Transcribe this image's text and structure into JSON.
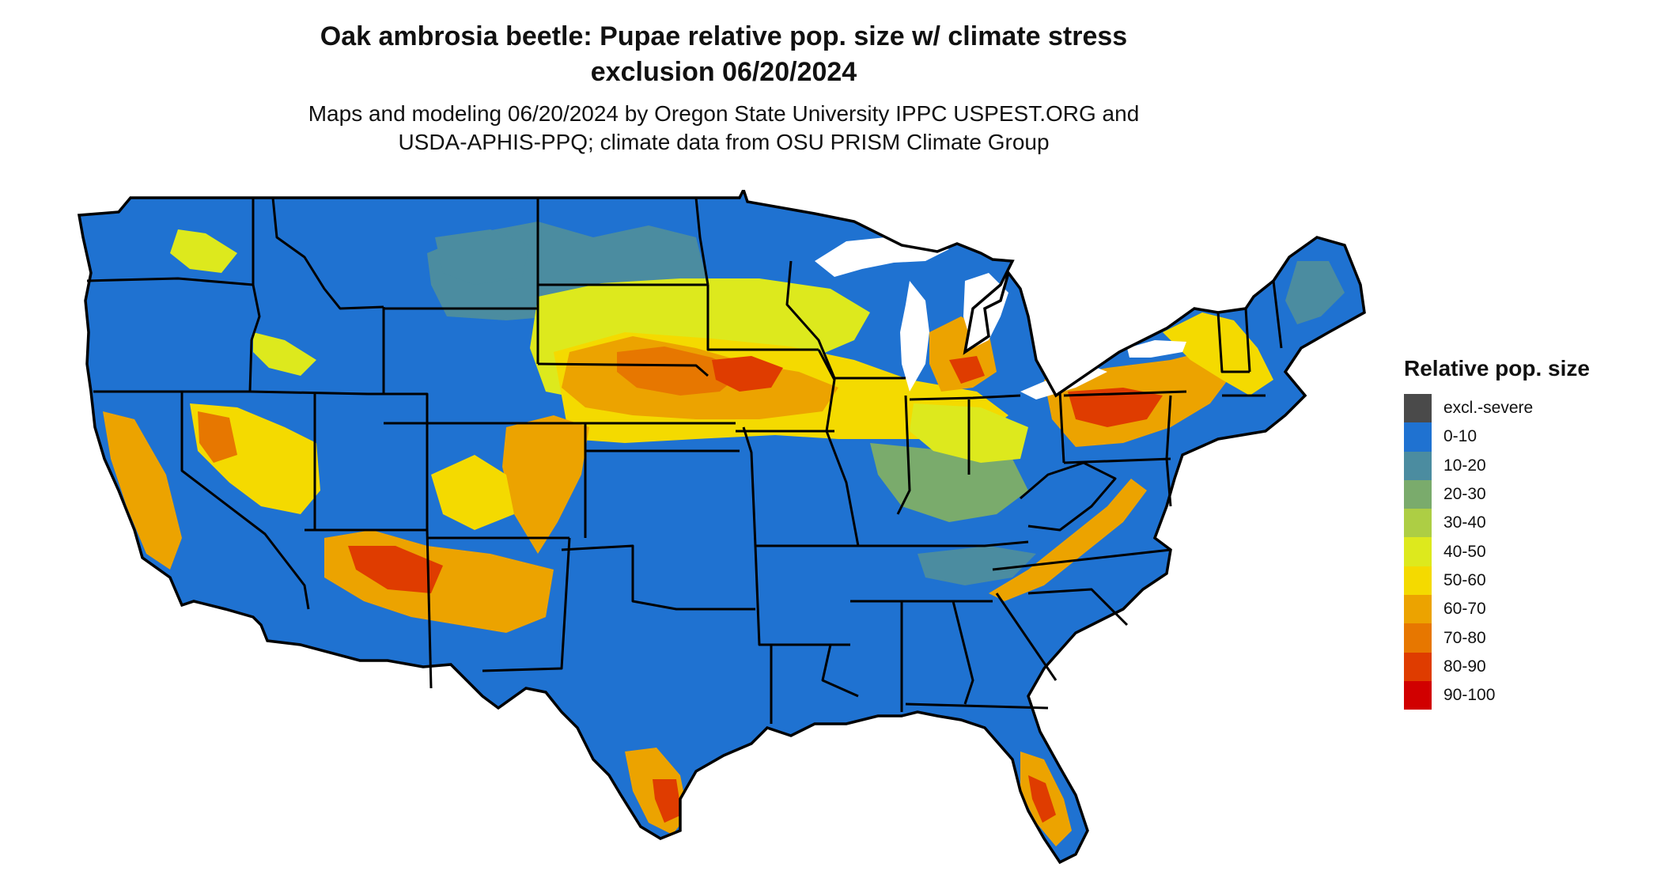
{
  "map": {
    "title_line1": "Oak ambrosia beetle: Pupae relative pop. size w/ climate stress",
    "title_line2": "exclusion 06/20/2024",
    "subtitle_line1": "Maps and modeling 06/20/2024 by Oregon State University IPPC USPEST.ORG and",
    "subtitle_line2": "USDA-APHIS-PPQ; climate data from OSU PRISM Climate Group",
    "background_class": "0-10",
    "colors": {
      "excl-severe": "#4a4a4a",
      "0-10": "#1f72d1",
      "10-20": "#4b8ca0",
      "20-30": "#7aab6c",
      "30-40": "#adce44",
      "40-50": "#dde91d",
      "50-60": "#f4da00",
      "60-70": "#eca300",
      "70-80": "#e77700",
      "80-90": "#df3c00",
      "90-100": "#d10000"
    }
  },
  "legend": {
    "title": "Relative pop. size",
    "items": [
      {
        "label": "excl.-severe",
        "color": "#4a4a4a"
      },
      {
        "label": "0-10",
        "color": "#1f72d1"
      },
      {
        "label": "10-20",
        "color": "#4b8ca0"
      },
      {
        "label": "20-30",
        "color": "#7aab6c"
      },
      {
        "label": "30-40",
        "color": "#adce44"
      },
      {
        "label": "40-50",
        "color": "#dde91d"
      },
      {
        "label": "50-60",
        "color": "#f4da00"
      },
      {
        "label": "60-70",
        "color": "#eca300"
      },
      {
        "label": "70-80",
        "color": "#e77700"
      },
      {
        "label": "80-90",
        "color": "#df3c00"
      },
      {
        "label": "90-100",
        "color": "#d10000"
      }
    ]
  }
}
